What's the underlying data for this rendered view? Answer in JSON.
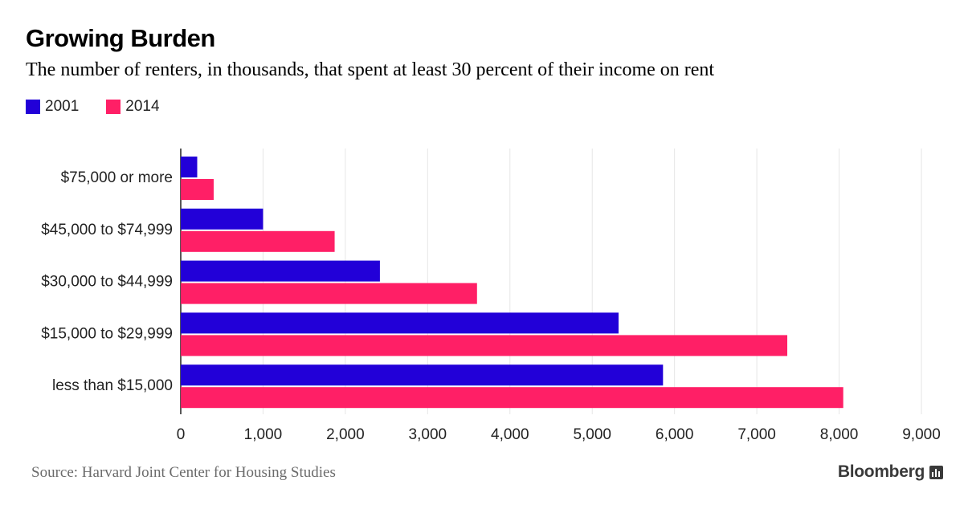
{
  "title": "Growing Burden",
  "subtitle": "The number of renters, in thousands, that spent at least 30 percent of their income on rent",
  "source": "Source: Harvard Joint Center for Housing Studies",
  "brand": "Bloomberg",
  "colors": {
    "series_2001": "#2200d8",
    "series_2014": "#ff1f66",
    "grid": "#e6e6e6",
    "axis": "#222222"
  },
  "chart_data": {
    "type": "bar",
    "orientation": "horizontal",
    "categories": [
      "$75,000 or more",
      "$45,000 to $74,999",
      "$30,000 to $44,999",
      "$15,000 to $29,999",
      "less than $15,000"
    ],
    "series": [
      {
        "name": "2001",
        "values": [
          200,
          1000,
          2420,
          5320,
          5860
        ]
      },
      {
        "name": "2014",
        "values": [
          400,
          1870,
          3600,
          7370,
          8050
        ]
      }
    ],
    "xlim": [
      0,
      9000
    ],
    "xticks": [
      0,
      1000,
      2000,
      3000,
      4000,
      5000,
      6000,
      7000,
      8000,
      9000
    ],
    "xtick_labels": [
      "0",
      "1,000",
      "2,000",
      "3,000",
      "4,000",
      "5,000",
      "6,000",
      "7,000",
      "8,000",
      "9,000"
    ],
    "grid": true,
    "legend": "top-left"
  }
}
